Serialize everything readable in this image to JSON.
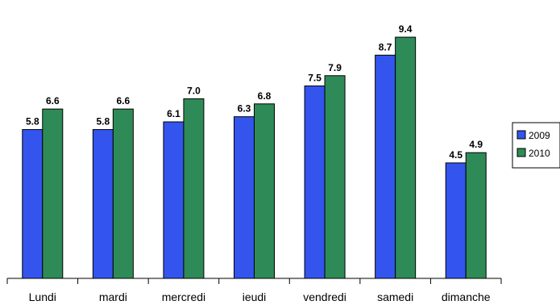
{
  "chart_data": {
    "type": "bar",
    "categories": [
      "Lundi",
      "mardi",
      "mercredi",
      "ieudi",
      "vendredi",
      "samedi",
      "dimanche"
    ],
    "series": [
      {
        "name": "2009",
        "color": "#3355ee",
        "values": [
          5.8,
          5.8,
          6.1,
          6.3,
          7.5,
          8.7,
          4.5
        ]
      },
      {
        "name": "2010",
        "color": "#2e8b57",
        "values": [
          6.6,
          6.6,
          7.0,
          6.8,
          7.9,
          9.4,
          4.9
        ]
      }
    ],
    "data_labels": {
      "2009": [
        "5.8",
        "5.8",
        "6.1",
        "6.3",
        "7.5",
        "8.7",
        "4.5"
      ],
      "2010": [
        "6.6",
        "6.6",
        "7.0",
        "6.8",
        "7.9",
        "9.4",
        "4.9"
      ]
    },
    "ylim": [
      0,
      10
    ],
    "grid": false,
    "legend_position": "right"
  }
}
